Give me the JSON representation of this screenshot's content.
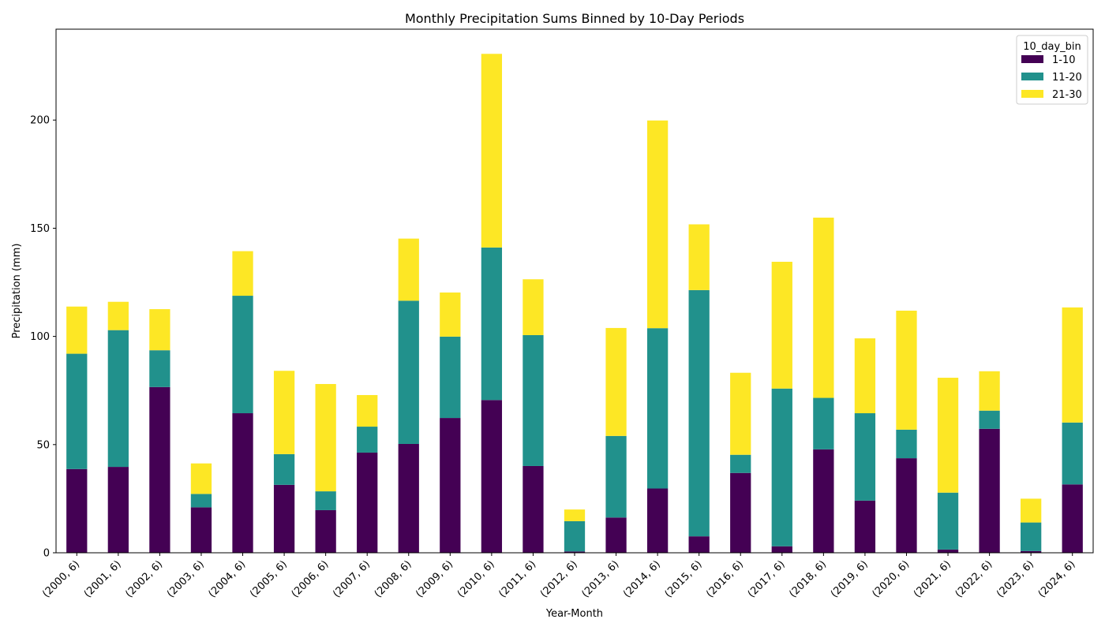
{
  "chart_data": {
    "type": "bar",
    "stacked": true,
    "title": "Monthly Precipitation Sums Binned by 10-Day Periods",
    "xlabel": "Year-Month",
    "ylabel": "Precipitation (mm)",
    "ylim": [
      0,
      242
    ],
    "yticks": [
      0,
      50,
      100,
      150,
      200
    ],
    "grid": false,
    "legend": {
      "title": "10_day_bin",
      "placement": "top-right"
    },
    "categories": [
      "(2000, 6)",
      "(2001, 6)",
      "(2002, 6)",
      "(2003, 6)",
      "(2004, 6)",
      "(2005, 6)",
      "(2006, 6)",
      "(2007, 6)",
      "(2008, 6)",
      "(2009, 6)",
      "(2010, 6)",
      "(2011, 6)",
      "(2012, 6)",
      "(2013, 6)",
      "(2014, 6)",
      "(2015, 6)",
      "(2016, 6)",
      "(2017, 6)",
      "(2018, 6)",
      "(2019, 6)",
      "(2020, 6)",
      "(2021, 6)",
      "(2022, 6)",
      "(2023, 6)",
      "(2024, 6)"
    ],
    "series": [
      {
        "name": "1-10",
        "color": "#440154",
        "values": [
          38.7,
          39.7,
          76.6,
          21.0,
          64.5,
          31.4,
          19.7,
          46.3,
          50.3,
          62.3,
          70.6,
          40.1,
          0.6,
          16.3,
          29.7,
          7.6,
          36.9,
          3.0,
          47.8,
          24.1,
          43.7,
          1.5,
          57.3,
          0.8,
          31.6
        ]
      },
      {
        "name": "11-20",
        "color": "#21918c",
        "values": [
          53.3,
          63.2,
          17.0,
          6.2,
          54.3,
          14.2,
          8.7,
          12.0,
          66.2,
          37.6,
          70.5,
          60.5,
          14.0,
          37.7,
          74.1,
          113.8,
          8.4,
          72.9,
          23.8,
          40.4,
          13.2,
          26.3,
          8.4,
          13.2,
          28.6
        ]
      },
      {
        "name": "21-30",
        "color": "#fde725",
        "values": [
          21.8,
          13.1,
          19.0,
          14.1,
          20.6,
          38.5,
          49.6,
          14.6,
          28.7,
          20.4,
          89.5,
          25.8,
          5.4,
          49.9,
          96.0,
          30.4,
          37.9,
          58.6,
          83.3,
          34.6,
          55.0,
          53.1,
          18.2,
          11.0,
          53.2
        ]
      }
    ]
  }
}
